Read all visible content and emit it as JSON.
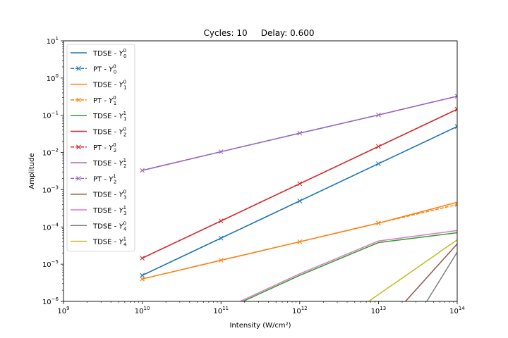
{
  "chart_data": {
    "type": "line",
    "title": "Cycles: 10     Delay: 0.600",
    "xlabel": "Intensity (W/cm²)",
    "ylabel": "Amplitude",
    "xscale": "log",
    "yscale": "log",
    "xlim": [
      1000000000.0,
      100000000000000.0
    ],
    "ylim": [
      1e-06,
      10
    ],
    "grid": false,
    "legend_position": "upper-left",
    "x_ticks": [
      {
        "value": 1000000000.0,
        "base": "10",
        "exp": "9"
      },
      {
        "value": 10000000000.0,
        "base": "10",
        "exp": "10"
      },
      {
        "value": 100000000000.0,
        "base": "10",
        "exp": "11"
      },
      {
        "value": 1000000000000.0,
        "base": "10",
        "exp": "12"
      },
      {
        "value": 10000000000000.0,
        "base": "10",
        "exp": "13"
      },
      {
        "value": 100000000000000.0,
        "base": "10",
        "exp": "14"
      }
    ],
    "y_ticks": [
      {
        "value": 1e-06,
        "base": "10",
        "exp": "−6"
      },
      {
        "value": 1e-05,
        "base": "10",
        "exp": "−5"
      },
      {
        "value": 0.0001,
        "base": "10",
        "exp": "−4"
      },
      {
        "value": 0.001,
        "base": "10",
        "exp": "−3"
      },
      {
        "value": 0.01,
        "base": "10",
        "exp": "−2"
      },
      {
        "value": 0.1,
        "base": "10",
        "exp": "−1"
      },
      {
        "value": 1,
        "base": "10",
        "exp": "0"
      },
      {
        "value": 10,
        "base": "10",
        "exp": "1"
      }
    ],
    "series": [
      {
        "name": "TDSE - Y₀⁰",
        "label_main": "TDSE - ",
        "label_sub": "0",
        "label_sup": "0",
        "color": "#1f77b4",
        "style": "solid",
        "marker": "none",
        "x": [
          10000000000.0,
          100000000000.0,
          1000000000000.0,
          10000000000000.0,
          100000000000000.0
        ],
        "y": [
          5e-06,
          5e-05,
          0.0005,
          0.005,
          0.05
        ]
      },
      {
        "name": "PT - Y₀⁰",
        "label_main": "PT - ",
        "label_sub": "0",
        "label_sup": "0",
        "color": "#1f77b4",
        "style": "dashed",
        "marker": "x",
        "x": [
          10000000000.0,
          100000000000.0,
          1000000000000.0,
          10000000000000.0,
          100000000000000.0
        ],
        "y": [
          5e-06,
          5e-05,
          0.0005,
          0.005,
          0.05
        ]
      },
      {
        "name": "TDSE - Y₁⁰",
        "label_main": "TDSE - ",
        "label_sub": "1",
        "label_sup": "0",
        "color": "#ff7f0e",
        "style": "solid",
        "marker": "none",
        "x": [
          10000000000.0,
          100000000000.0,
          1000000000000.0,
          10000000000000.0,
          100000000000000.0
        ],
        "y": [
          4e-06,
          1.27e-05,
          4e-05,
          0.000127,
          0.00046
        ]
      },
      {
        "name": "PT - Y₁⁰",
        "label_main": "PT - ",
        "label_sub": "1",
        "label_sup": "0",
        "color": "#ff7f0e",
        "style": "dashed",
        "marker": "x",
        "x": [
          10000000000.0,
          100000000000.0,
          1000000000000.0,
          10000000000000.0,
          100000000000000.0
        ],
        "y": [
          4e-06,
          1.27e-05,
          4e-05,
          0.000127,
          0.0004
        ]
      },
      {
        "name": "TDSE - Y₁¹",
        "label_main": "TDSE - ",
        "label_sub": "1",
        "label_sup": "1",
        "color": "#2ca02c",
        "style": "solid",
        "marker": "none",
        "x": [
          190000000000.0,
          1000000000000.0,
          10000000000000.0,
          100000000000000.0
        ],
        "y": [
          1e-06,
          5e-06,
          3.8e-05,
          7e-05
        ]
      },
      {
        "name": "TDSE - Y₂⁰",
        "label_main": "TDSE - ",
        "label_sub": "2",
        "label_sup": "0",
        "color": "#d62728",
        "style": "solid",
        "marker": "none",
        "x": [
          10000000000.0,
          100000000000.0,
          1000000000000.0,
          10000000000000.0,
          100000000000000.0
        ],
        "y": [
          1.45e-05,
          0.000145,
          0.00145,
          0.0145,
          0.145
        ]
      },
      {
        "name": "PT - Y₂⁰",
        "label_main": "PT - ",
        "label_sub": "2",
        "label_sup": "0",
        "color": "#d62728",
        "style": "dashed",
        "marker": "x",
        "x": [
          10000000000.0,
          100000000000.0,
          1000000000000.0,
          10000000000000.0,
          100000000000000.0
        ],
        "y": [
          1.45e-05,
          0.000145,
          0.00145,
          0.0145,
          0.145
        ]
      },
      {
        "name": "TDSE - Y₂¹",
        "label_main": "TDSE - ",
        "label_sub": "2",
        "label_sup": "1",
        "color": "#9467bd",
        "style": "solid",
        "marker": "none",
        "x": [
          10000000000.0,
          100000000000.0,
          1000000000000.0,
          10000000000000.0,
          100000000000000.0
        ],
        "y": [
          0.0033,
          0.0105,
          0.033,
          0.102,
          0.325
        ]
      },
      {
        "name": "PT - Y₂¹",
        "label_main": "PT - ",
        "label_sub": "2",
        "label_sup": "1",
        "color": "#9467bd",
        "style": "dashed",
        "marker": "x",
        "x": [
          10000000000.0,
          100000000000.0,
          1000000000000.0,
          10000000000000.0,
          100000000000000.0
        ],
        "y": [
          0.0033,
          0.0105,
          0.033,
          0.102,
          0.325
        ]
      },
      {
        "name": "TDSE - Y₃⁰",
        "label_main": "TDSE - ",
        "label_sub": "3",
        "label_sup": "0",
        "color": "#8c564b",
        "style": "solid",
        "marker": "none",
        "x": [
          22000000000000.0,
          100000000000000.0
        ],
        "y": [
          1e-06,
          3.5e-05
        ]
      },
      {
        "name": "TDSE - Y₃¹",
        "label_main": "TDSE - ",
        "label_sub": "3",
        "label_sup": "1",
        "color": "#e377c2",
        "style": "solid",
        "marker": "none",
        "x": [
          175000000000.0,
          1000000000000.0,
          10000000000000.0,
          100000000000000.0
        ],
        "y": [
          1e-06,
          5.5e-06,
          4.2e-05,
          8e-05
        ]
      },
      {
        "name": "TDSE - Y₄⁰",
        "label_main": "TDSE - ",
        "label_sub": "4",
        "label_sup": "0",
        "color": "#7f7f7f",
        "style": "solid",
        "marker": "none",
        "x": [
          41000000000000.0,
          100000000000000.0
        ],
        "y": [
          1e-06,
          2.1e-05
        ]
      },
      {
        "name": "TDSE - Y₄¹",
        "label_main": "TDSE - ",
        "label_sub": "4",
        "label_sup": "1",
        "color": "#bcbd22",
        "style": "solid",
        "marker": "none",
        "x": [
          7500000000000.0,
          100000000000000.0
        ],
        "y": [
          1e-06,
          4.5e-05
        ]
      }
    ]
  }
}
